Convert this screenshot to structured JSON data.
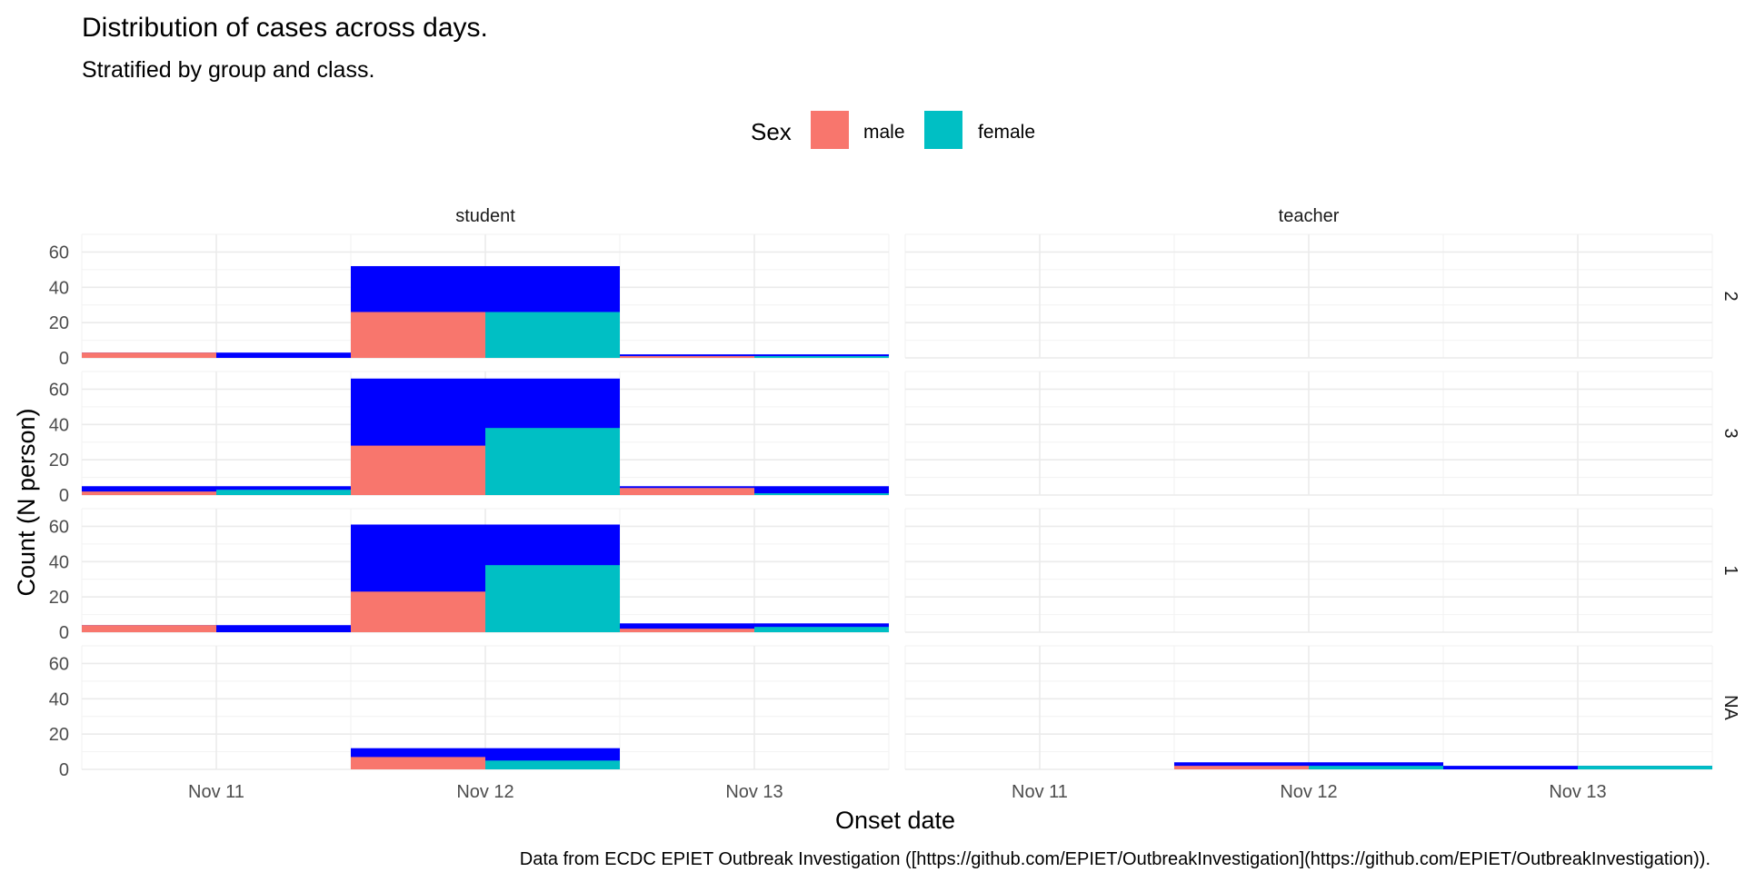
{
  "chart_data": {
    "type": "bar",
    "title": "Distribution of cases across days.",
    "subtitle": "Stratified by group and class.",
    "xlabel": "Onset date",
    "ylabel": "Count (N person)",
    "caption": "Data from ECDC EPIET Outbreak Investigation ([https://github.com/EPIET/OutbreakInvestigation](https://github.com/EPIET/OutbreakInvestigation)).",
    "legend": {
      "title": "Sex",
      "position": "top",
      "entries": [
        {
          "label": "male",
          "color": "#F8766D"
        },
        {
          "label": "female",
          "color": "#00BFC4"
        }
      ]
    },
    "overlay_color": "#0000FF",
    "grid": true,
    "ylim": [
      0,
      70
    ],
    "yticks": [
      "0",
      "20",
      "40",
      "60"
    ],
    "categories": [
      "Nov 11",
      "Nov 12",
      "Nov 13"
    ],
    "columns": [
      "student",
      "teacher"
    ],
    "rows": [
      "2",
      "3",
      "1",
      "NA"
    ],
    "panels": [
      {
        "col": "student",
        "row": "2",
        "bars": [
          {
            "date": "Nov 11",
            "male": 3,
            "female": 0,
            "total": 3
          },
          {
            "date": "Nov 12",
            "male": 26,
            "female": 26,
            "total": 52
          },
          {
            "date": "Nov 13",
            "male": 1,
            "female": 1,
            "total": 2
          }
        ]
      },
      {
        "col": "teacher",
        "row": "2",
        "bars": []
      },
      {
        "col": "student",
        "row": "3",
        "bars": [
          {
            "date": "Nov 11",
            "male": 2,
            "female": 3,
            "total": 5
          },
          {
            "date": "Nov 12",
            "male": 28,
            "female": 38,
            "total": 66
          },
          {
            "date": "Nov 13",
            "male": 4,
            "female": 1,
            "total": 5
          }
        ]
      },
      {
        "col": "teacher",
        "row": "3",
        "bars": []
      },
      {
        "col": "student",
        "row": "1",
        "bars": [
          {
            "date": "Nov 11",
            "male": 4,
            "female": 0,
            "total": 4
          },
          {
            "date": "Nov 12",
            "male": 23,
            "female": 38,
            "total": 61
          },
          {
            "date": "Nov 13",
            "male": 2,
            "female": 3,
            "total": 5
          }
        ]
      },
      {
        "col": "teacher",
        "row": "1",
        "bars": []
      },
      {
        "col": "student",
        "row": "NA",
        "bars": [
          {
            "date": "Nov 12",
            "male": 7,
            "female": 5,
            "total": 12
          }
        ]
      },
      {
        "col": "teacher",
        "row": "NA",
        "bars": [
          {
            "date": "Nov 12",
            "male": 2,
            "female": 2,
            "total": 4
          },
          {
            "date": "Nov 13",
            "male": 0,
            "female": 2,
            "total": 2
          }
        ]
      }
    ]
  }
}
